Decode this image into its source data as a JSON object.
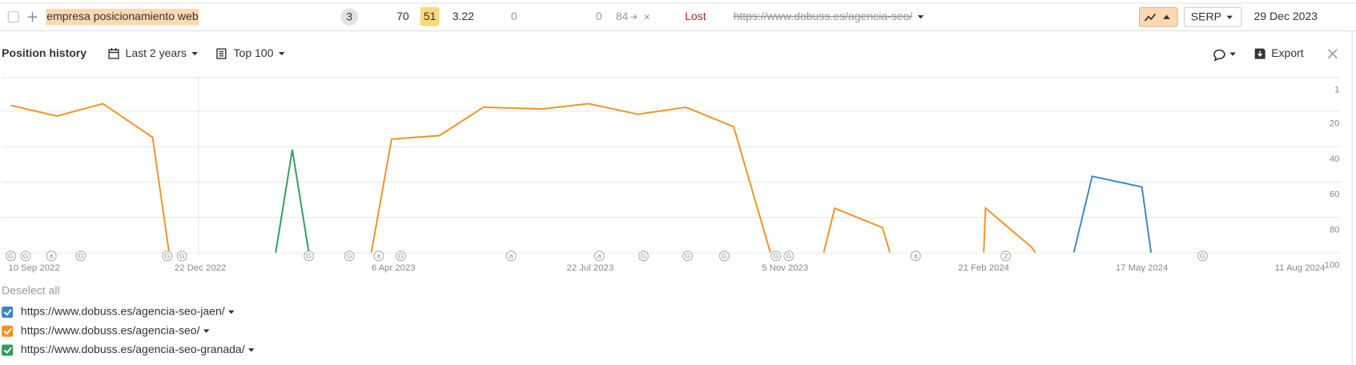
{
  "keyword_row": {
    "keyword": "empresa posicionamiento web",
    "intents": "3",
    "volume": "70",
    "kd": "51",
    "cpc": "3.22",
    "traffic": "0",
    "traffic_change": "0",
    "position": "84",
    "status": "Lost",
    "url": "https://www.dobuss.es/agencia-seo/",
    "serp_button": "SERP",
    "date": "29 Dec 2023"
  },
  "toolbar": {
    "title": "Position history",
    "period": "Last 2 years",
    "top": "Top 100",
    "export": "Export"
  },
  "legend": {
    "deselect": "Deselect all"
  },
  "chart_data": {
    "type": "line",
    "xlim": [
      "2022-09-05",
      "2024-09-02"
    ],
    "xticks": [
      {
        "value": "2022-09-10",
        "label": "10 Sep 2022"
      },
      {
        "value": "2022-12-22",
        "label": "22 Dec 2022"
      },
      {
        "value": "2023-04-06",
        "label": "6 Apr 2023"
      },
      {
        "value": "2023-07-22",
        "label": "22 Jul 2023"
      },
      {
        "value": "2023-11-05",
        "label": "5 Nov 2023"
      },
      {
        "value": "2024-02-21",
        "label": "21 Feb 2024"
      },
      {
        "value": "2024-05-17",
        "label": "17 May 2024"
      },
      {
        "value": "2024-08-11",
        "label": "11 Aug 2024"
      }
    ],
    "ylim": [
      1,
      100
    ],
    "y_inverted": true,
    "yticks": [
      1,
      20,
      40,
      60,
      80,
      100
    ],
    "grid": true,
    "series": [
      {
        "name": "https://www.dobuss.es/agencia-seo-jaen/",
        "color": "#3a86c8",
        "x": [
          "2024-04-10",
          "2024-04-20",
          "2024-05-17",
          "2024-05-22"
        ],
        "values": [
          100,
          57,
          63,
          100
        ]
      },
      {
        "name": "https://www.dobuss.es/agencia-seo/",
        "color": "#f5921e",
        "x": [
          "2022-09-10",
          "2022-10-05",
          "2022-10-30",
          "2022-11-26",
          "2022-12-05",
          null,
          "2023-03-25",
          "2023-04-05",
          "2023-05-01",
          "2023-05-25",
          "2023-06-26",
          "2023-07-21",
          "2023-08-17",
          "2023-09-12",
          "2023-10-08",
          "2023-10-28",
          null,
          "2023-11-26",
          "2023-12-02",
          "2023-12-28",
          "2024-01-01",
          null,
          "2024-02-21",
          "2024-02-22",
          "2024-03-18",
          "2024-03-20"
        ],
        "values": [
          17,
          23,
          16,
          35,
          100,
          null,
          100,
          36,
          34,
          18,
          19,
          16,
          22,
          18,
          29,
          100,
          null,
          100,
          75,
          86,
          100,
          null,
          100,
          75,
          97,
          100
        ]
      },
      {
        "name": "https://www.dobuss.es/agencia-seo-granada/",
        "color": "#2e9e5b",
        "x": [
          "2023-02-01",
          "2023-02-10",
          "2023-02-19"
        ],
        "values": [
          100,
          42,
          100
        ]
      }
    ],
    "markers": {
      "x": [
        "2022-09-10",
        "2022-09-18",
        "2022-10-02",
        "2022-10-18",
        "2022-12-04",
        "2022-12-12",
        "2023-02-19",
        "2023-03-13",
        "2023-03-29",
        "2023-04-10",
        "2023-06-09",
        "2023-07-27",
        "2023-08-20",
        "2023-09-13",
        "2023-10-03",
        "2023-10-31",
        "2023-11-07",
        "2024-01-15",
        "2024-03-04",
        "2024-06-19"
      ],
      "labels": [
        "G",
        "G",
        "a",
        "G",
        "G",
        "G",
        "G",
        "G",
        "a",
        "G",
        "a",
        "a",
        "G",
        "G",
        "G",
        "G",
        "G",
        "a",
        "2",
        "G"
      ]
    }
  }
}
